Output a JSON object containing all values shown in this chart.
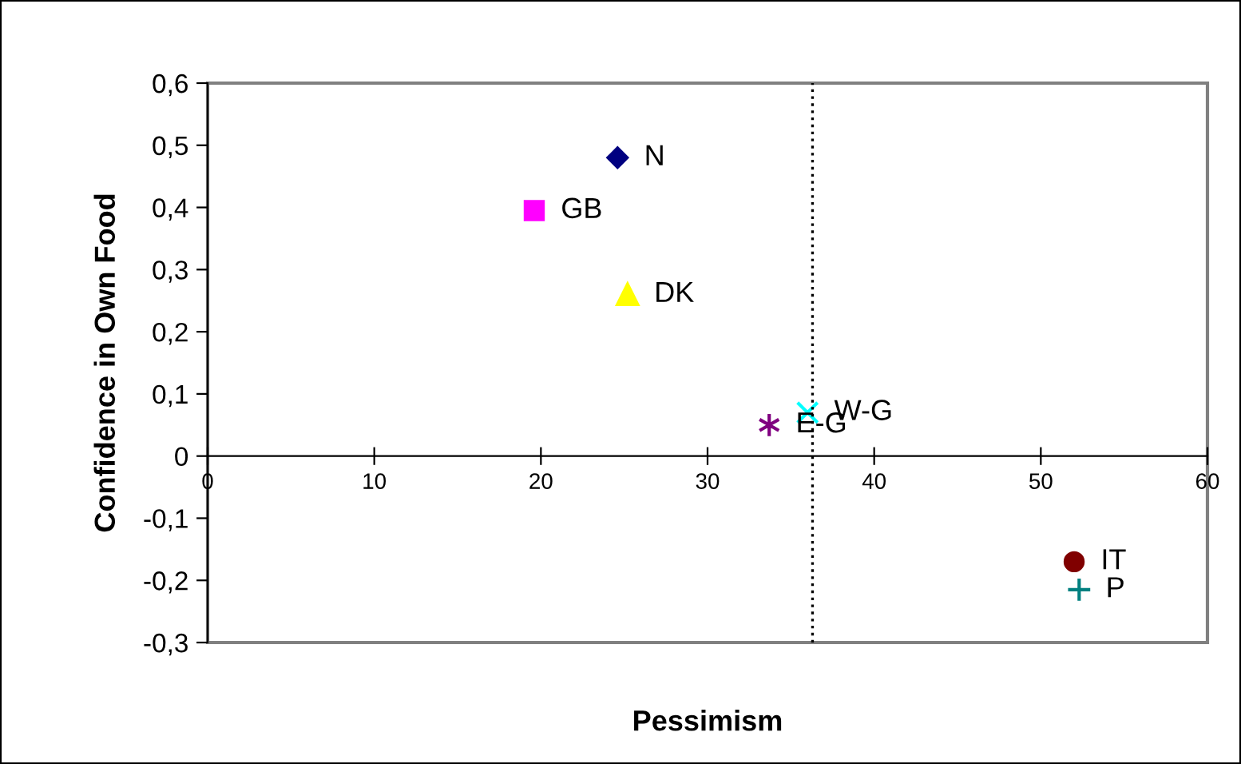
{
  "chart_data": {
    "type": "scatter",
    "xlabel": "Pessimism",
    "ylabel": "Confidence in Own Food",
    "xlim": [
      0,
      60
    ],
    "xticks": [
      0,
      10,
      20,
      30,
      40,
      50,
      60
    ],
    "ylim": [
      -0.3,
      0.6
    ],
    "yticks": [
      {
        "value": -0.3,
        "label": "-0,3"
      },
      {
        "value": -0.2,
        "label": "-0,2"
      },
      {
        "value": -0.1,
        "label": "-0,1"
      },
      {
        "value": 0,
        "label": "0"
      },
      {
        "value": 0.1,
        "label": "0,1"
      },
      {
        "value": 0.2,
        "label": "0,2"
      },
      {
        "value": 0.3,
        "label": "0,3"
      },
      {
        "value": 0.4,
        "label": "0,4"
      },
      {
        "value": 0.5,
        "label": "0,5"
      },
      {
        "value": 0.6,
        "label": "0,6"
      }
    ],
    "grid": false,
    "legend": false,
    "ref_lines": [
      {
        "axis": "x",
        "value": 36.3,
        "line_style": "dotted",
        "color": "#000000"
      }
    ],
    "series": [
      {
        "name": "N",
        "color": "#000080",
        "marker": "diamond",
        "x": [
          24.6
        ],
        "values": [
          0.48
        ]
      },
      {
        "name": "GB",
        "color": "#ff00ff",
        "marker": "square",
        "x": [
          19.6
        ],
        "values": [
          0.395
        ]
      },
      {
        "name": "DK",
        "color": "#ffff00",
        "marker": "triangle",
        "x": [
          25.2
        ],
        "values": [
          0.26
        ]
      },
      {
        "name": "E-G",
        "color": "#800080",
        "marker": "cross",
        "x": [
          33.7
        ],
        "values": [
          0.05
        ]
      },
      {
        "name": "W-G",
        "color": "#00ffff",
        "marker": "x",
        "x": [
          36.0
        ],
        "values": [
          0.07
        ]
      },
      {
        "name": "IT",
        "color": "#800000",
        "marker": "circle",
        "x": [
          52.0
        ],
        "values": [
          -0.17
        ]
      },
      {
        "name": "P",
        "color": "#008080",
        "marker": "plus",
        "x": [
          52.3
        ],
        "values": [
          -0.215
        ]
      }
    ]
  }
}
